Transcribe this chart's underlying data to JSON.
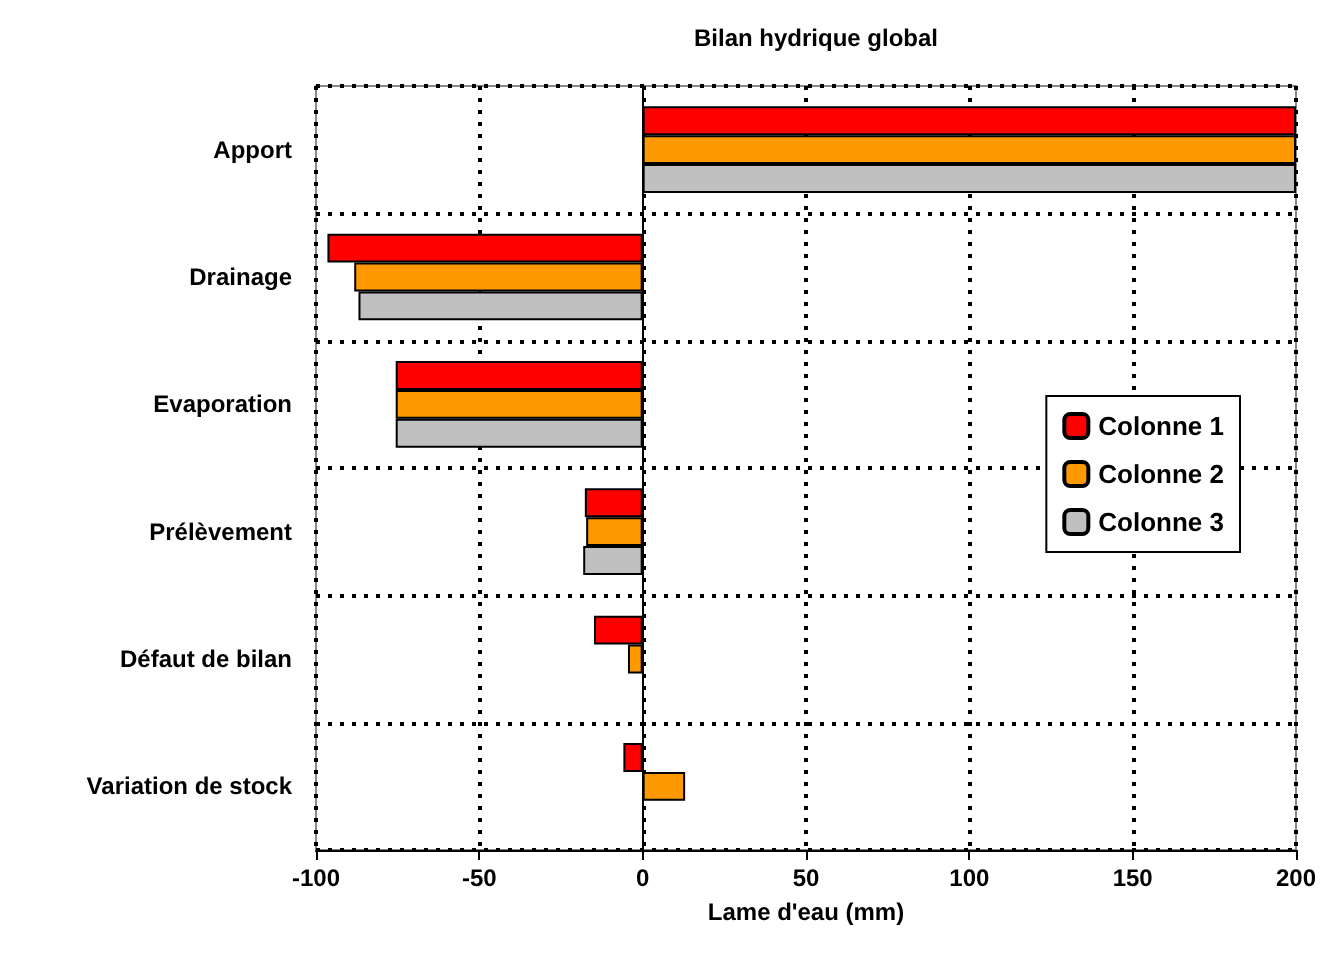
{
  "chart_data": {
    "type": "bar",
    "orientation": "horizontal",
    "title": "Bilan hydrique global",
    "xlabel": "Lame d'eau (mm)",
    "categories": [
      "Apport",
      "Drainage",
      "Evaporation",
      "Prélèvement",
      "Défaut de bilan",
      "Variation de stock"
    ],
    "series": [
      {
        "name": "Colonne 1",
        "color": "#ff0000",
        "values": [
          200,
          -96.5,
          -75.6,
          -17.7,
          -14.9,
          -5.9
        ]
      },
      {
        "name": "Colonne 2",
        "color": "#ff9900",
        "values": [
          200,
          -88.3,
          -75.6,
          -17.3,
          -4.5,
          13
        ]
      },
      {
        "name": "Colonne 3",
        "color": "#c0c0c0",
        "values": [
          200,
          -87,
          -75.6,
          -18.2,
          null,
          null
        ]
      }
    ],
    "xlim": [
      -100,
      200
    ],
    "xticks": [
      -100,
      -50,
      0,
      50,
      100,
      150,
      200
    ],
    "grid": true,
    "legend": "right"
  }
}
